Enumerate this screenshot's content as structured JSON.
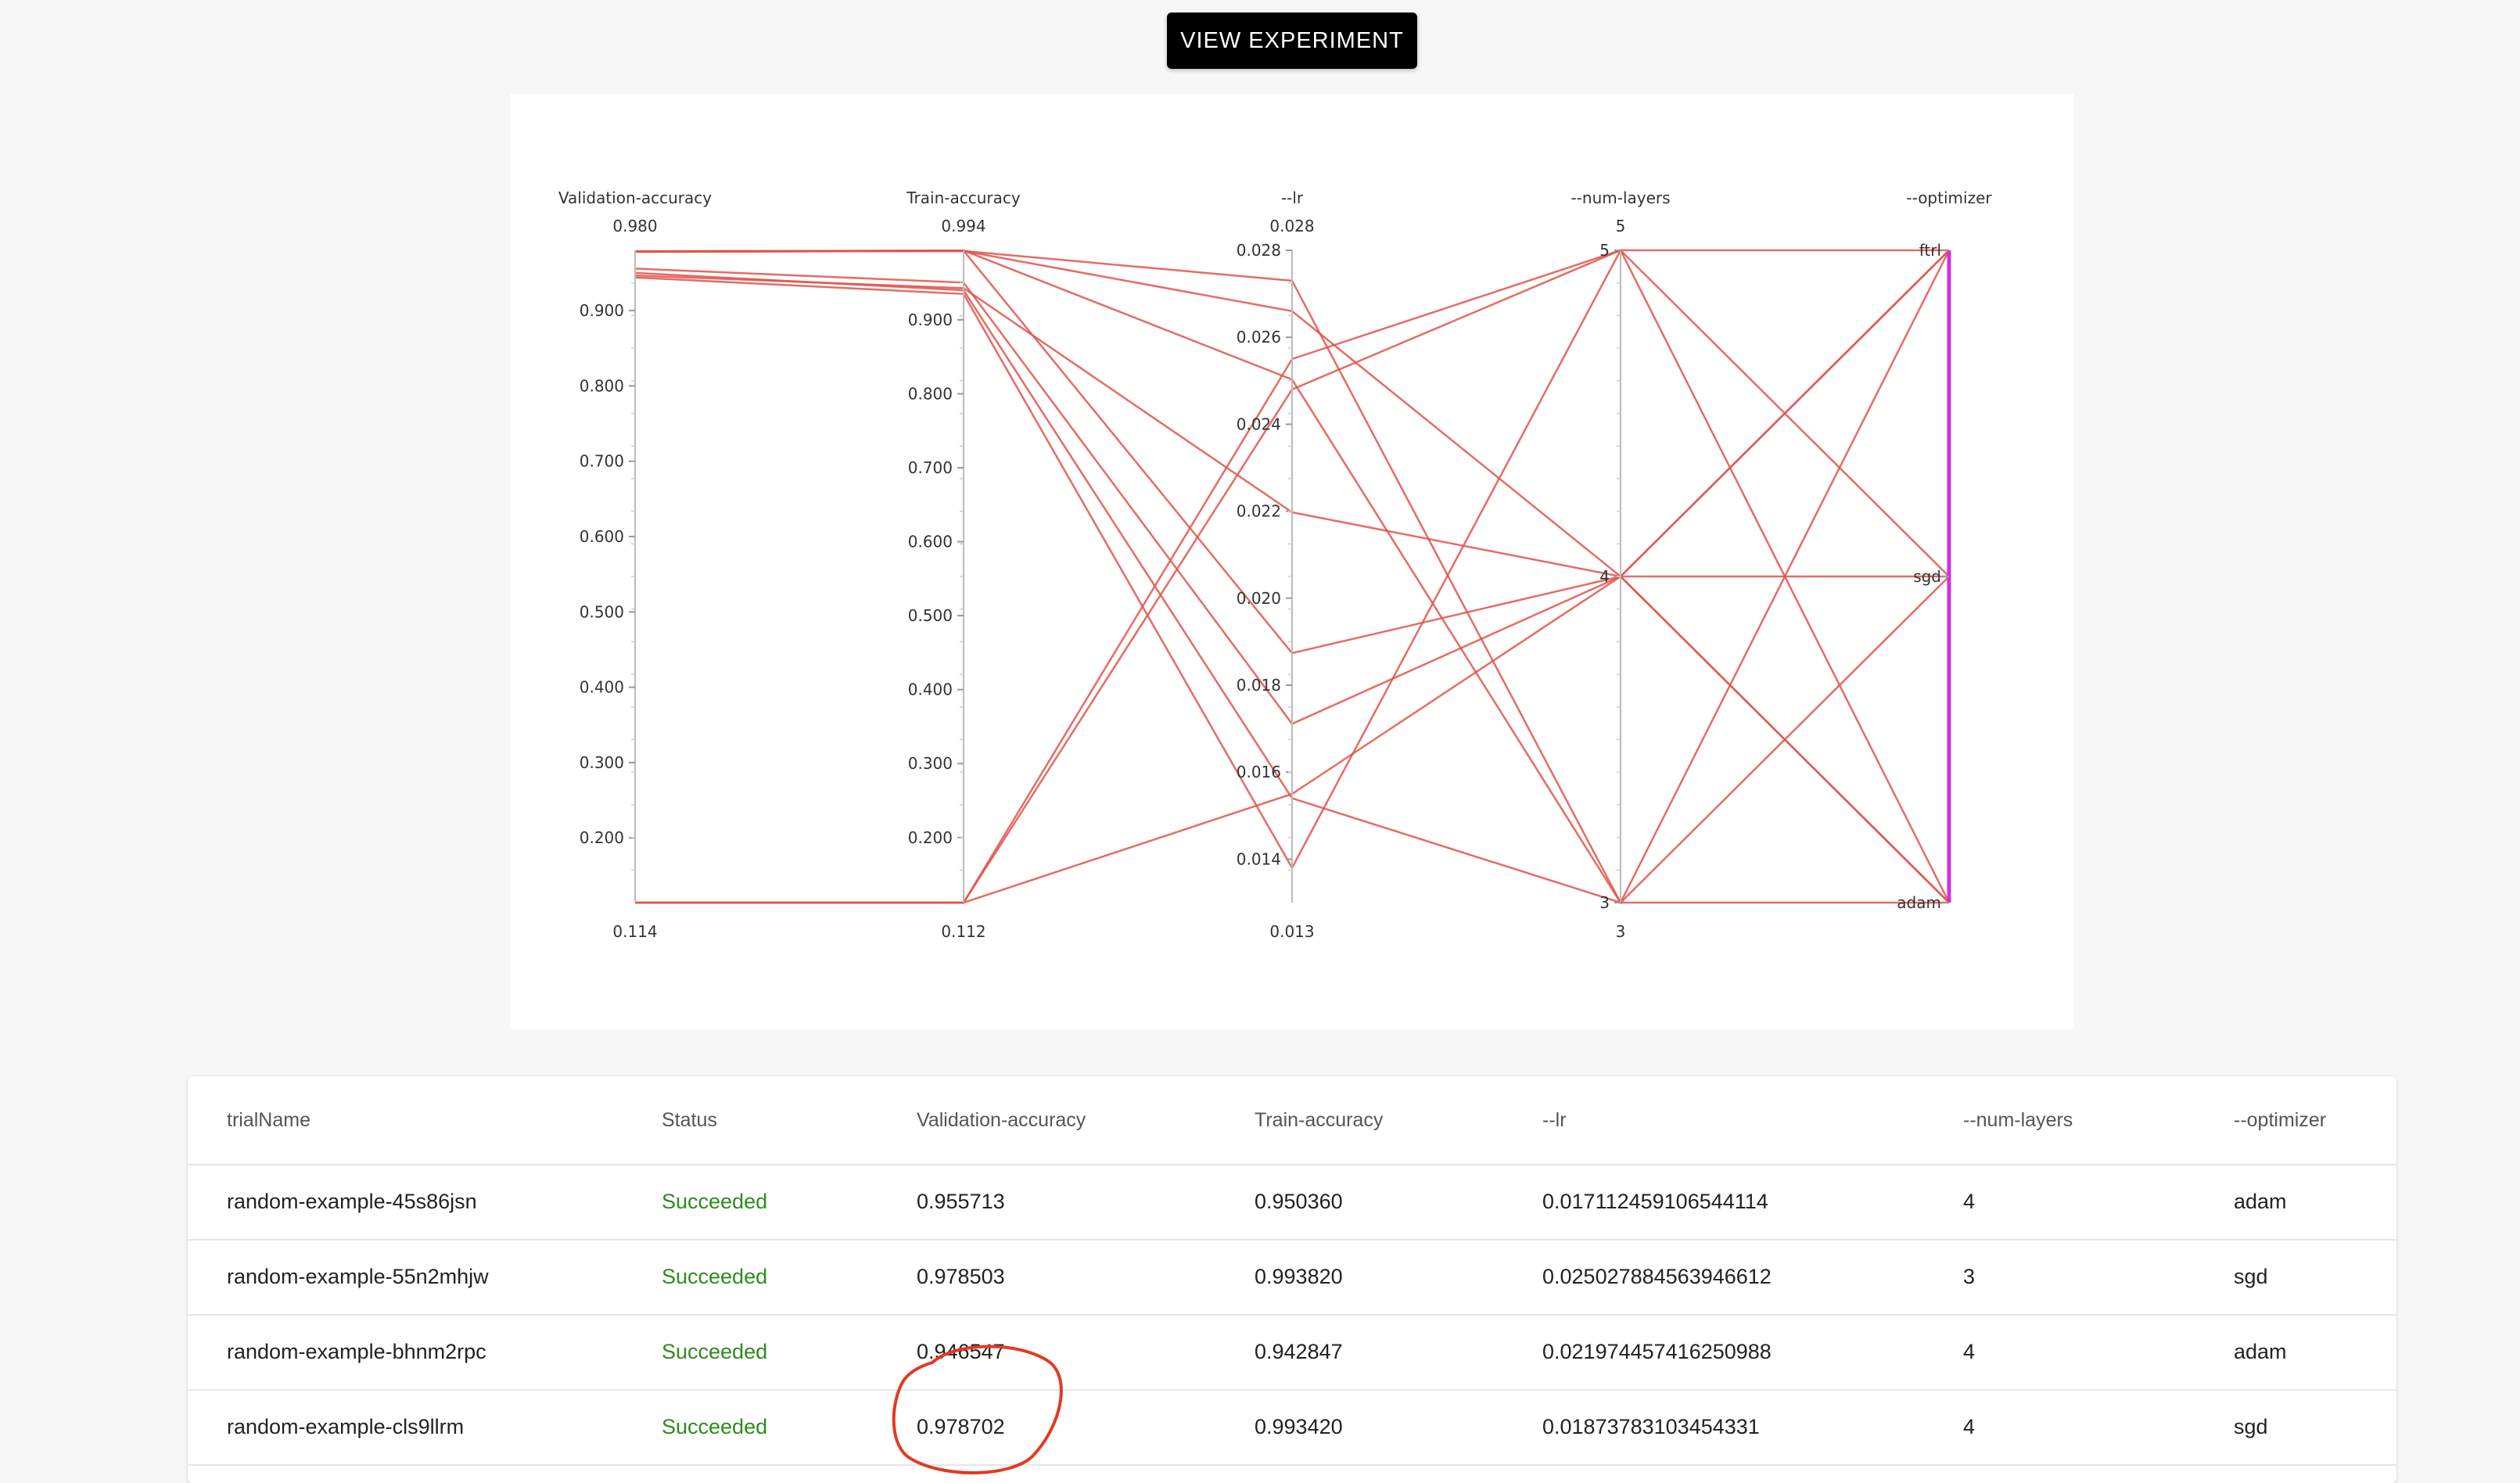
{
  "header": {
    "view_experiment_label": "VIEW EXPERIMENT"
  },
  "chart_data": {
    "type": "parallel-coordinates",
    "axes": [
      {
        "name": "Validation-accuracy",
        "min": 0.114,
        "max": 0.98,
        "min_label": "0.114",
        "max_label": "0.980",
        "ticks": [
          "0.900",
          "0.800",
          "0.700",
          "0.600",
          "0.500",
          "0.400",
          "0.300",
          "0.200"
        ]
      },
      {
        "name": "Train-accuracy",
        "min": 0.112,
        "max": 0.994,
        "min_label": "0.112",
        "max_label": "0.994",
        "ticks": [
          "0.900",
          "0.800",
          "0.700",
          "0.600",
          "0.500",
          "0.400",
          "0.300",
          "0.200"
        ]
      },
      {
        "name": "--lr",
        "min": 0.013,
        "max": 0.028,
        "min_label": "0.013",
        "max_label": "0.028",
        "ticks": [
          "0.028",
          "0.026",
          "0.024",
          "0.022",
          "0.020",
          "0.018",
          "0.016",
          "0.014"
        ]
      },
      {
        "name": "--num-layers",
        "min": 3,
        "max": 5,
        "min_label": "3",
        "max_label": "5",
        "ticks": [
          "5",
          "4",
          "3"
        ]
      },
      {
        "name": "--optimizer",
        "categories": [
          "ftrl",
          "sgd",
          "adam"
        ],
        "min_label": "",
        "max_label": ""
      }
    ],
    "line_color": "#e0524a",
    "highlight_color": "#cc33e0",
    "lines": [
      {
        "values": [
          0.955713,
          0.95036,
          0.017112,
          4,
          "adam"
        ]
      },
      {
        "values": [
          0.978503,
          0.99382,
          0.025028,
          3,
          "sgd"
        ]
      },
      {
        "values": [
          0.946547,
          0.942847,
          0.021974,
          4,
          "adam"
        ]
      },
      {
        "values": [
          0.978702,
          0.99342,
          0.018738,
          4,
          "sgd"
        ]
      },
      {
        "values": [
          0.944,
          0.935,
          0.0138,
          5,
          "ftrl"
        ]
      },
      {
        "values": [
          0.978,
          0.993,
          0.0266,
          4,
          "ftrl"
        ]
      },
      {
        "values": [
          0.114,
          0.112,
          0.0248,
          5,
          "adam"
        ]
      },
      {
        "values": [
          0.114,
          0.112,
          0.0255,
          5,
          "sgd"
        ]
      },
      {
        "values": [
          0.114,
          0.112,
          0.0155,
          4,
          "ftrl"
        ]
      },
      {
        "values": [
          0.978,
          0.993,
          0.0273,
          3,
          "adam"
        ]
      },
      {
        "values": [
          0.95,
          0.94,
          0.0154,
          3,
          "ftrl"
        ]
      }
    ]
  },
  "table": {
    "headers": [
      "trialName",
      "Status",
      "Validation-accuracy",
      "Train-accuracy",
      "--lr",
      "--num-layers",
      "--optimizer"
    ],
    "rows": [
      [
        "random-example-45s86jsn",
        "Succeeded",
        "0.955713",
        "0.950360",
        "0.017112459106544114",
        "4",
        "adam"
      ],
      [
        "random-example-55n2mhjw",
        "Succeeded",
        "0.978503",
        "0.993820",
        "0.025027884563946612",
        "3",
        "sgd"
      ],
      [
        "random-example-bhnm2rpc",
        "Succeeded",
        "0.946547",
        "0.942847",
        "0.021974457416250988",
        "4",
        "adam"
      ],
      [
        "random-example-cls9llrm",
        "Succeeded",
        "0.978702",
        "0.993420",
        "0.01873783103454331",
        "4",
        "sgd"
      ]
    ]
  }
}
